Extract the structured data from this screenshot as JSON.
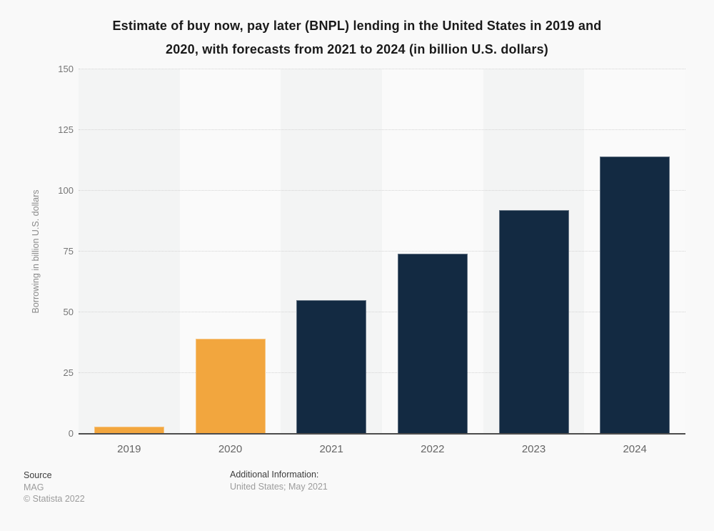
{
  "title": {
    "line1": "Estimate of buy now, pay later (BNPL) lending in the United States in 2019 and",
    "line2": "2020, with forecasts from 2021 to 2024 (in billion U.S. dollars)"
  },
  "chart_data": {
    "type": "bar",
    "title": "Estimate of buy now, pay later (BNPL) lending in the United States in 2019 and 2020, with forecasts from 2021 to 2024 (in billion U.S. dollars)",
    "categories": [
      "2019",
      "2020",
      "2021",
      "2022",
      "2023",
      "2024"
    ],
    "values": [
      3,
      39,
      55,
      74,
      92,
      114
    ],
    "series_types": [
      "actual",
      "actual",
      "forecast",
      "forecast",
      "forecast",
      "forecast"
    ],
    "xlabel": "",
    "ylabel": "Borrowing in billion U.S. dollars",
    "ylim": [
      0,
      150
    ],
    "yticks": [
      0,
      25,
      50,
      75,
      100,
      125,
      150
    ],
    "grid": "horizontal-dotted",
    "legend": "none",
    "colors": {
      "actual": "#F2A63E",
      "forecast": "#132A42",
      "band_dark": "#f3f4f4",
      "band_light": "#fafafa",
      "axis_line": "#4d4d4d",
      "gridline": "#d4d4d4"
    }
  },
  "footer": {
    "source_label": "Source",
    "source_value": "MAG",
    "copyright": "© Statista 2022",
    "additional_info_label": "Additional Information:",
    "additional_info_value": "United States; May 2021"
  }
}
